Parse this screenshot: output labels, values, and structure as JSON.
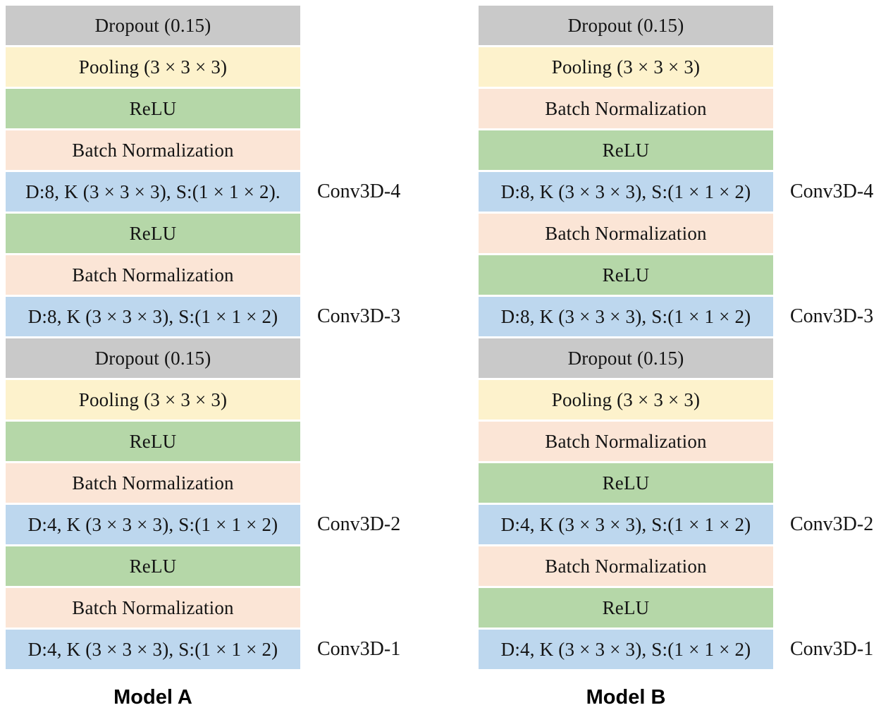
{
  "colors": {
    "dropout": "#c9c9c9",
    "pooling": "#fdf2cc",
    "relu": "#b5d7a8",
    "batchnorm": "#fbe5d6",
    "conv": "#bdd7ee"
  },
  "models": [
    {
      "name": "Model A",
      "layers": [
        {
          "type": "dropout",
          "label": "Dropout (0.15)"
        },
        {
          "type": "pooling",
          "label": "Pooling (3 × 3 × 3)"
        },
        {
          "type": "relu",
          "label": "ReLU"
        },
        {
          "type": "batchnorm",
          "label": "Batch Normalization"
        },
        {
          "type": "conv",
          "label": "D:8, K (3 × 3 × 3), S:(1 × 1 × 2).",
          "side": "Conv3D-4"
        },
        {
          "type": "relu",
          "label": "ReLU"
        },
        {
          "type": "batchnorm",
          "label": "Batch Normalization"
        },
        {
          "type": "conv",
          "label": "D:8, K (3 × 3 × 3), S:(1 × 1 × 2)",
          "side": "Conv3D-3"
        },
        {
          "type": "dropout",
          "label": "Dropout (0.15)"
        },
        {
          "type": "pooling",
          "label": "Pooling (3 × 3 × 3)"
        },
        {
          "type": "relu",
          "label": "ReLU"
        },
        {
          "type": "batchnorm",
          "label": "Batch Normalization"
        },
        {
          "type": "conv",
          "label": "D:4, K (3 × 3 × 3), S:(1 × 1 × 2)",
          "side": "Conv3D-2"
        },
        {
          "type": "relu",
          "label": "ReLU"
        },
        {
          "type": "batchnorm",
          "label": "Batch Normalization"
        },
        {
          "type": "conv",
          "label": "D:4, K (3 × 3 × 3), S:(1 × 1 × 2)",
          "side": "Conv3D-1"
        }
      ]
    },
    {
      "name": "Model B",
      "layers": [
        {
          "type": "dropout",
          "label": "Dropout (0.15)"
        },
        {
          "type": "pooling",
          "label": "Pooling (3 × 3 × 3)"
        },
        {
          "type": "batchnorm",
          "label": "Batch Normalization"
        },
        {
          "type": "relu",
          "label": "ReLU"
        },
        {
          "type": "conv",
          "label": "D:8, K (3 × 3 × 3), S:(1 × 1 × 2)",
          "side": "Conv3D-4"
        },
        {
          "type": "batchnorm",
          "label": "Batch Normalization"
        },
        {
          "type": "relu",
          "label": "ReLU"
        },
        {
          "type": "conv",
          "label": "D:8, K (3 × 3 × 3), S:(1 × 1 × 2)",
          "side": "Conv3D-3"
        },
        {
          "type": "dropout",
          "label": "Dropout (0.15)"
        },
        {
          "type": "pooling",
          "label": "Pooling (3 × 3 × 3)"
        },
        {
          "type": "batchnorm",
          "label": "Batch Normalization"
        },
        {
          "type": "relu",
          "label": "ReLU"
        },
        {
          "type": "conv",
          "label": "D:4, K (3 × 3 × 3), S:(1 × 1 × 2)",
          "side": "Conv3D-2"
        },
        {
          "type": "batchnorm",
          "label": "Batch Normalization"
        },
        {
          "type": "relu",
          "label": "ReLU"
        },
        {
          "type": "conv",
          "label": "D:4, K (3 × 3 × 3), S:(1 × 1 × 2)",
          "side": "Conv3D-1"
        }
      ]
    }
  ]
}
